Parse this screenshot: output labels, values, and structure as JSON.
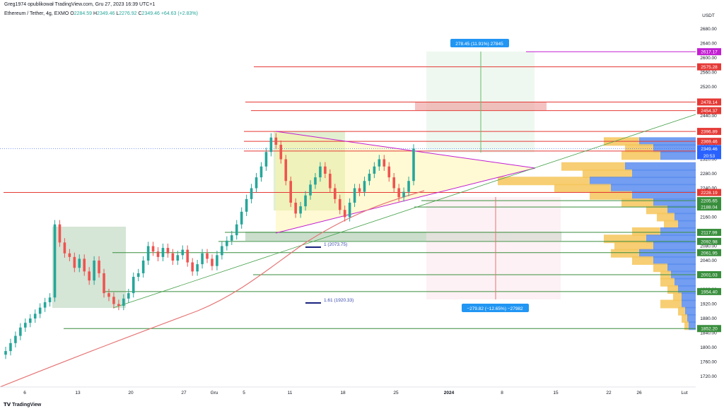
{
  "header": {
    "publisher": "Greg1974 opublikował TradingView.com, Gru 27, 2023 16:39 UTC+1",
    "symbol": "Ethereum / Tether, 4g, EXMO",
    "open_label": "O",
    "open": "2284.59",
    "high_label": "H",
    "high": "2349.46",
    "low_label": "L",
    "low": "2276.92",
    "close_label": "C",
    "close": "2349.46",
    "change": "+64.63 (+2.83%)"
  },
  "footer": {
    "brand": "TradingView"
  },
  "chart_data": {
    "type": "candlestick",
    "currency": "USDT",
    "ylim": [
      1700,
      2700
    ],
    "y_ticks": [
      1720,
      1760,
      1800,
      1840,
      1880,
      1920,
      1960,
      2000,
      2040,
      2080,
      2120,
      2160,
      2200,
      2240,
      2280,
      2320,
      2360,
      2400,
      2440,
      2480,
      2520,
      2560,
      2600,
      2640,
      2680
    ],
    "y_axis_title": "USDT",
    "x_ticks": [
      "6",
      "13",
      "20",
      "27",
      "Gru",
      "5",
      "11",
      "18",
      "25",
      "2024",
      "8",
      "15",
      "22",
      "26",
      "Lut"
    ],
    "price_levels": [
      {
        "value": 2617.17,
        "label": "2617.17",
        "color": "#c21ed2"
      },
      {
        "value": 2575.28,
        "label": "2575.28",
        "color": "#e53935"
      },
      {
        "value": 2478.14,
        "label": "2478.14",
        "color": "#e53935"
      },
      {
        "value": 2454.37,
        "label": "2454.37",
        "color": "#e53935"
      },
      {
        "value": 2396.89,
        "label": "2396.89",
        "color": "#e53935"
      },
      {
        "value": 2369.46,
        "label": "2369.46",
        "color": "#e53935"
      },
      {
        "value": 2342.68,
        "label": "2342.68",
        "color": "#e53935"
      },
      {
        "value": 2228.19,
        "label": "2228.19",
        "color": "#e53935"
      },
      {
        "value": 2205.65,
        "label": "2205.65",
        "color": "#388e3c"
      },
      {
        "value": 2188.04,
        "label": "2188.04",
        "color": "#388e3c"
      },
      {
        "value": 2117.99,
        "label": "2117.99",
        "color": "#388e3c"
      },
      {
        "value": 2092.98,
        "label": "2092.98",
        "color": "#388e3c"
      },
      {
        "value": 2061.95,
        "label": "2061.95",
        "color": "#388e3c"
      },
      {
        "value": 2001.03,
        "label": "2001.03",
        "color": "#388e3c"
      },
      {
        "value": 1954.4,
        "label": "1954.40",
        "color": "#388e3c"
      },
      {
        "value": 1852.2,
        "label": "1852.20",
        "color": "#388e3c"
      }
    ],
    "current_price": {
      "value": 2349.46,
      "label": "2349.46",
      "countdown": "20:53",
      "color": "#2962ff"
    },
    "fib_labels": [
      {
        "value": 2073.75,
        "label": "1 (2073.75)"
      },
      {
        "value": 1920.33,
        "label": "1.61 (1920.33)"
      }
    ],
    "long_target": {
      "label": "278.45 (11.91%) 27845",
      "entry": 2339,
      "target": 2617.17
    },
    "short_target": {
      "label": "−279.82 (−12.65%) −27982",
      "entry": 2213,
      "target": 1934
    },
    "zones": [
      {
        "from": 1905,
        "to": 2150,
        "color": "#2e7d32"
      },
      {
        "from": 2085,
        "to": 2110,
        "color": "#2e7d32"
      },
      {
        "from": 2200,
        "to": 2402,
        "color": "#9e9d24"
      }
    ],
    "closes": [
      1790,
      1812,
      1832,
      1855,
      1868,
      1880,
      1893,
      1910,
      1925,
      1938,
      2140,
      2090,
      2060,
      2050,
      2020,
      2045,
      2010,
      1985,
      2040,
      2005,
      1950,
      1940,
      1920,
      1915,
      1935,
      1950,
      1995,
      2005,
      2040,
      2080,
      2065,
      2050,
      2075,
      2060,
      2040,
      2055,
      2070,
      2035,
      2010,
      2030,
      2060,
      2045,
      2025,
      2055,
      2080,
      2095,
      2110,
      2140,
      2175,
      2210,
      2240,
      2270,
      2300,
      2340,
      2380,
      2360,
      2320,
      2260,
      2200,
      2170,
      2190,
      2220,
      2250,
      2270,
      2300,
      2280,
      2240,
      2210,
      2180,
      2160,
      2200,
      2240,
      2230,
      2260,
      2280,
      2300,
      2320,
      2300,
      2270,
      2240,
      2215,
      2230,
      2260,
      2349.46
    ]
  }
}
